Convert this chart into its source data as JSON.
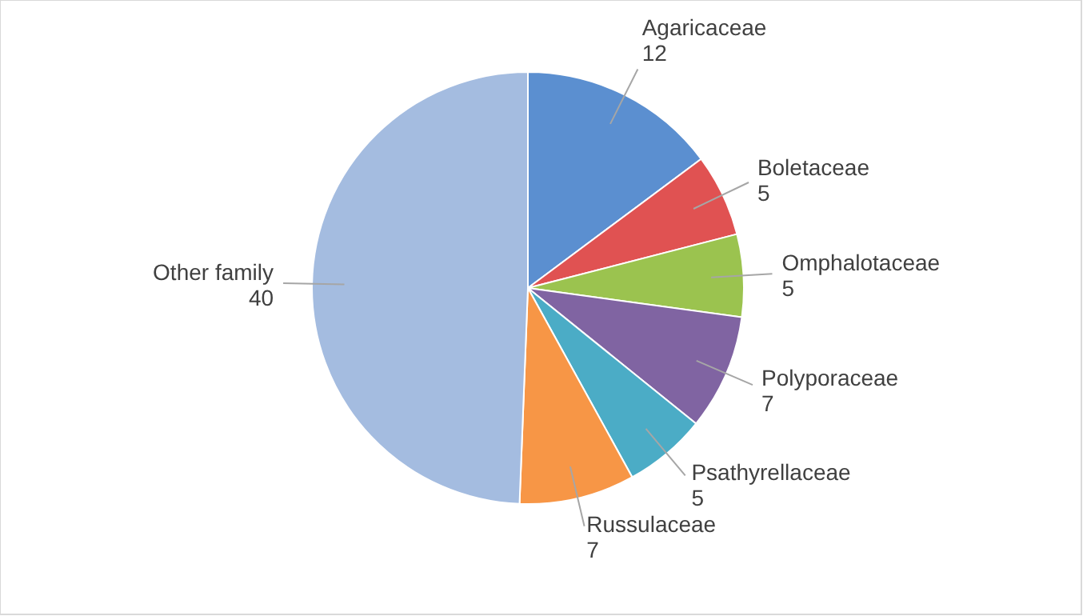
{
  "chart_data": {
    "type": "pie",
    "categories": [
      "Agaricaceae",
      "Boletaceae",
      "Omphalotaceae",
      "Polyporaceae",
      "Psathyrellaceae",
      "Russulaceae",
      "Other family"
    ],
    "values": [
      12,
      5,
      5,
      7,
      5,
      7,
      40
    ],
    "colors": [
      "#5b8fd0",
      "#e05252",
      "#9bc34f",
      "#8064a2",
      "#4bacc6",
      "#f79646",
      "#a4bce0"
    ],
    "data_labels": true
  }
}
